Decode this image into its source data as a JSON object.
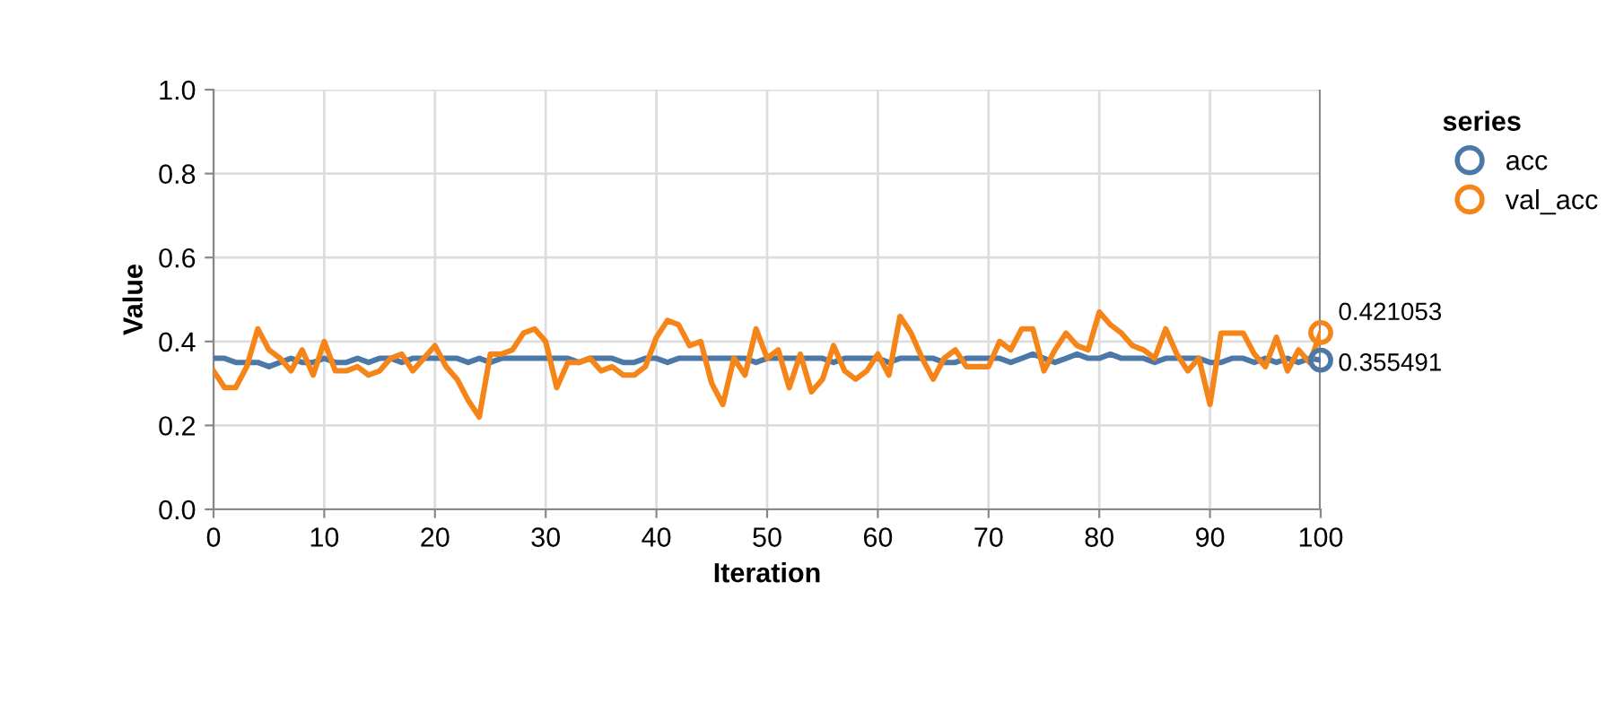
{
  "chart_data": {
    "type": "line",
    "xlabel": "Iteration",
    "ylabel": "Value",
    "legend_title": "series",
    "legend": "top right",
    "grid": true,
    "x": [
      0,
      1,
      2,
      3,
      4,
      5,
      6,
      7,
      8,
      9,
      10,
      11,
      12,
      13,
      14,
      15,
      16,
      17,
      18,
      19,
      20,
      21,
      22,
      23,
      24,
      25,
      26,
      27,
      28,
      29,
      30,
      31,
      32,
      33,
      34,
      35,
      36,
      37,
      38,
      39,
      40,
      41,
      42,
      43,
      44,
      45,
      46,
      47,
      48,
      49,
      50,
      51,
      52,
      53,
      54,
      55,
      56,
      57,
      58,
      59,
      60,
      61,
      62,
      63,
      64,
      65,
      66,
      67,
      68,
      69,
      70,
      71,
      72,
      73,
      74,
      75,
      76,
      77,
      78,
      79,
      80,
      81,
      82,
      83,
      84,
      85,
      86,
      87,
      88,
      89,
      90,
      91,
      92,
      93,
      94,
      95,
      96,
      97,
      98,
      99,
      100
    ],
    "xlim": [
      0,
      100
    ],
    "xticks": [
      0,
      10,
      20,
      30,
      40,
      50,
      60,
      70,
      80,
      90,
      100
    ],
    "ylim": [
      0,
      1
    ],
    "yticks": [
      {
        "value": 0,
        "label": "0.0"
      },
      0.2,
      0.4,
      0.6,
      0.8,
      {
        "value": 1,
        "label": "1.0"
      }
    ],
    "ref_lines": [
      {
        "axis": "x",
        "value": 100,
        "label": null,
        "color": "#888888"
      }
    ],
    "series": [
      {
        "name": "acc",
        "color": "#4c78a8",
        "values": [
          0.36,
          0.36,
          0.35,
          0.35,
          0.35,
          0.34,
          0.35,
          0.36,
          0.35,
          0.35,
          0.36,
          0.35,
          0.35,
          0.36,
          0.35,
          0.36,
          0.36,
          0.35,
          0.36,
          0.36,
          0.36,
          0.36,
          0.36,
          0.35,
          0.36,
          0.35,
          0.36,
          0.36,
          0.36,
          0.36,
          0.36,
          0.36,
          0.36,
          0.35,
          0.36,
          0.36,
          0.36,
          0.35,
          0.35,
          0.36,
          0.36,
          0.35,
          0.36,
          0.36,
          0.36,
          0.36,
          0.36,
          0.36,
          0.36,
          0.35,
          0.36,
          0.36,
          0.36,
          0.36,
          0.36,
          0.36,
          0.35,
          0.36,
          0.36,
          0.36,
          0.36,
          0.35,
          0.36,
          0.36,
          0.36,
          0.36,
          0.35,
          0.35,
          0.36,
          0.36,
          0.36,
          0.36,
          0.35,
          0.36,
          0.37,
          0.36,
          0.35,
          0.36,
          0.37,
          0.36,
          0.36,
          0.37,
          0.36,
          0.36,
          0.36,
          0.35,
          0.36,
          0.36,
          0.36,
          0.36,
          0.35,
          0.35,
          0.36,
          0.36,
          0.35,
          0.36,
          0.35,
          0.36,
          0.35,
          0.36,
          0.355491
        ],
        "value_labels": [
          null,
          null,
          null,
          null,
          null,
          null,
          null,
          null,
          null,
          null,
          null,
          null,
          null,
          null,
          null,
          null,
          null,
          null,
          null,
          null,
          null,
          null,
          null,
          null,
          null,
          null,
          null,
          null,
          null,
          null,
          null,
          null,
          null,
          null,
          null,
          null,
          null,
          null,
          null,
          null,
          null,
          null,
          null,
          null,
          null,
          null,
          null,
          null,
          null,
          null,
          null,
          null,
          null,
          null,
          null,
          null,
          null,
          null,
          null,
          null,
          null,
          null,
          null,
          null,
          null,
          null,
          null,
          null,
          null,
          null,
          null,
          null,
          null,
          null,
          null,
          null,
          null,
          null,
          null,
          null,
          null,
          null,
          null,
          null,
          null,
          null,
          null,
          null,
          null,
          null,
          null,
          null,
          null,
          null,
          null,
          null,
          null,
          null,
          null,
          null,
          "0.355491"
        ]
      },
      {
        "name": "val_acc",
        "color": "#f58518",
        "values": [
          0.33,
          0.29,
          0.29,
          0.34,
          0.43,
          0.38,
          0.36,
          0.33,
          0.38,
          0.32,
          0.4,
          0.33,
          0.33,
          0.34,
          0.32,
          0.33,
          0.36,
          0.37,
          0.33,
          0.36,
          0.39,
          0.34,
          0.31,
          0.26,
          0.22,
          0.37,
          0.37,
          0.38,
          0.42,
          0.43,
          0.4,
          0.29,
          0.35,
          0.35,
          0.36,
          0.33,
          0.34,
          0.32,
          0.32,
          0.34,
          0.41,
          0.45,
          0.44,
          0.39,
          0.4,
          0.3,
          0.25,
          0.36,
          0.32,
          0.43,
          0.36,
          0.38,
          0.29,
          0.37,
          0.28,
          0.31,
          0.39,
          0.33,
          0.31,
          0.33,
          0.37,
          0.32,
          0.46,
          0.42,
          0.36,
          0.31,
          0.36,
          0.38,
          0.34,
          0.34,
          0.34,
          0.4,
          0.38,
          0.43,
          0.43,
          0.33,
          0.38,
          0.42,
          0.39,
          0.38,
          0.47,
          0.44,
          0.42,
          0.39,
          0.38,
          0.36,
          0.43,
          0.37,
          0.33,
          0.36,
          0.25,
          0.42,
          0.42,
          0.42,
          0.37,
          0.34,
          0.41,
          0.33,
          0.38,
          0.35,
          0.421053
        ],
        "value_labels": [
          null,
          null,
          null,
          null,
          null,
          null,
          null,
          null,
          null,
          null,
          null,
          null,
          null,
          null,
          null,
          null,
          null,
          null,
          null,
          null,
          null,
          null,
          null,
          null,
          null,
          null,
          null,
          null,
          null,
          null,
          null,
          null,
          null,
          null,
          null,
          null,
          null,
          null,
          null,
          null,
          null,
          null,
          null,
          null,
          null,
          null,
          null,
          null,
          null,
          null,
          null,
          null,
          null,
          null,
          null,
          null,
          null,
          null,
          null,
          null,
          null,
          null,
          null,
          null,
          null,
          null,
          null,
          null,
          null,
          null,
          null,
          null,
          null,
          null,
          null,
          null,
          null,
          null,
          null,
          null,
          null,
          null,
          null,
          null,
          null,
          null,
          null,
          null,
          null,
          null,
          null,
          null,
          null,
          null,
          null,
          null,
          null,
          null,
          null,
          null,
          "0.421053"
        ]
      }
    ]
  }
}
